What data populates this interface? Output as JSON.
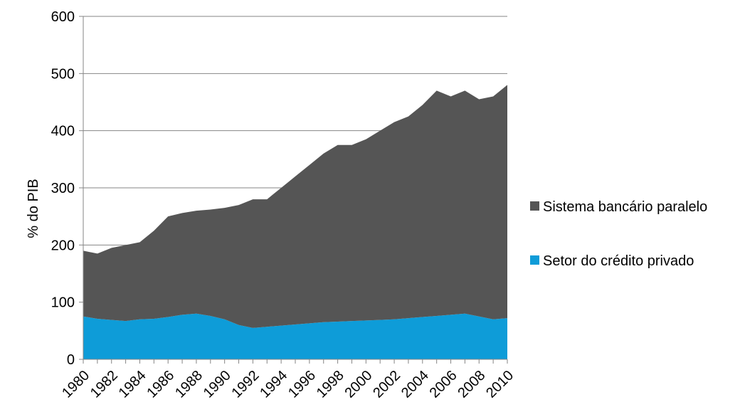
{
  "chart_data": {
    "type": "area",
    "stacked": true,
    "title": "",
    "xlabel": "",
    "ylabel": "% do PIB",
    "ylim": [
      0,
      600
    ],
    "yticks": [
      0,
      100,
      200,
      300,
      400,
      500,
      600
    ],
    "xlim": [
      1980,
      2010
    ],
    "xticks": [
      1980,
      1982,
      1984,
      1986,
      1988,
      1990,
      1992,
      1994,
      1996,
      1998,
      2000,
      2002,
      2004,
      2006,
      2008,
      2010
    ],
    "grid": "horizontal",
    "legend_position": "right",
    "x": [
      1980,
      1981,
      1982,
      1983,
      1984,
      1985,
      1986,
      1987,
      1988,
      1989,
      1990,
      1991,
      1992,
      1993,
      1994,
      1995,
      1996,
      1997,
      1998,
      1999,
      2000,
      2001,
      2002,
      2003,
      2004,
      2005,
      2006,
      2007,
      2008,
      2009,
      2010
    ],
    "series": [
      {
        "name": "Setor do crédito privado",
        "color": "#0e9cd8",
        "values": [
          75,
          71,
          69,
          67,
          70,
          71,
          74,
          78,
          80,
          76,
          70,
          60,
          55,
          57,
          59,
          61,
          63,
          65,
          66,
          67,
          68,
          69,
          70,
          72,
          74,
          76,
          78,
          80,
          75,
          70,
          72
        ]
      },
      {
        "name": "Sistema bancário paralelo",
        "color": "#555555",
        "values": [
          115,
          114,
          126,
          133,
          135,
          154,
          176,
          178,
          180,
          186,
          195,
          210,
          225,
          223,
          241,
          259,
          277,
          295,
          309,
          308,
          317,
          331,
          345,
          353,
          371,
          394,
          382,
          390,
          380,
          390,
          408
        ]
      }
    ],
    "legend": [
      {
        "label": "Sistema bancário paralelo",
        "color": "#555555"
      },
      {
        "label": "Setor do crédito privado",
        "color": "#0e9cd8"
      }
    ]
  }
}
